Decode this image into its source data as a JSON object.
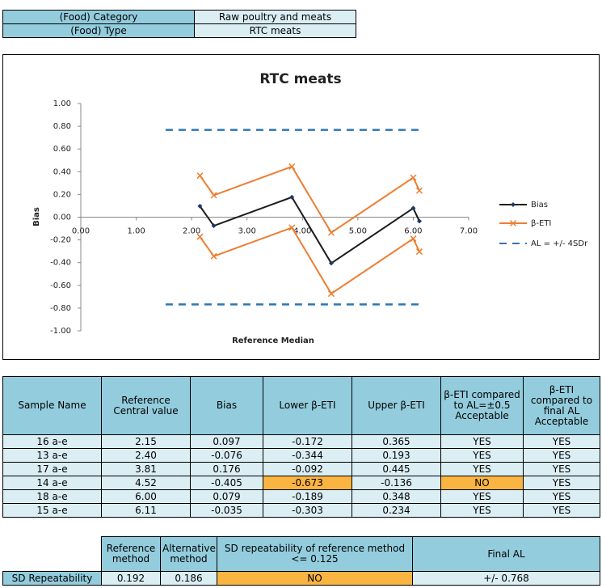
{
  "top_table": {
    "rows": [
      [
        "(Food) Category",
        "Raw poultry and meats"
      ],
      [
        "(Food) Type",
        "RTC meats"
      ]
    ]
  },
  "chart_data": {
    "type": "line",
    "title": "RTC meats",
    "x_label": "Reference Median",
    "y_label": "Bias",
    "x": [
      2.15,
      2.4,
      3.81,
      4.52,
      6.0,
      6.11
    ],
    "series": [
      {
        "name": "Bias",
        "color": "#1c1c1c",
        "marker_color": "#1f3864",
        "values": [
          0.097,
          -0.076,
          0.176,
          -0.405,
          0.079,
          -0.035
        ]
      },
      {
        "name": "β-ETI",
        "color": "#ed7d31",
        "lower": [
          -0.172,
          -0.344,
          -0.092,
          -0.673,
          -0.189,
          -0.303
        ],
        "upper": [
          0.365,
          0.193,
          0.445,
          -0.136,
          0.348,
          0.234
        ]
      },
      {
        "name": "AL = +/- 4SDr",
        "color": "#2e75b6",
        "x": [
          1.53,
          6.17
        ],
        "upper": [
          0.768,
          0.768
        ],
        "lower": [
          -0.768,
          -0.768
        ]
      }
    ],
    "xlim": [
      0,
      7
    ],
    "ylim": [
      -1,
      1
    ],
    "xticks": [
      {
        "value": 0,
        "label": "0.00"
      },
      {
        "value": 1,
        "label": "1.00"
      },
      {
        "value": 2,
        "label": "2.00"
      },
      {
        "value": 3,
        "label": "3.00"
      },
      {
        "value": 4,
        "label": "4.00"
      },
      {
        "value": 5,
        "label": "5.00"
      },
      {
        "value": 6,
        "label": "6.00"
      },
      {
        "value": 7,
        "label": "7.00"
      }
    ],
    "yticks": [
      {
        "value": 1,
        "label": "1.00"
      },
      {
        "value": 0.8,
        "label": "0.80"
      },
      {
        "value": 0.6,
        "label": "0.60"
      },
      {
        "value": 0.4,
        "label": "0.40"
      },
      {
        "value": 0.2,
        "label": "0.20"
      },
      {
        "value": 0,
        "label": "0.00"
      },
      {
        "value": -0.2,
        "label": "-0.20"
      },
      {
        "value": -0.4,
        "label": "-0.40"
      },
      {
        "value": -0.6,
        "label": "-0.60"
      },
      {
        "value": -0.8,
        "label": "-0.80"
      },
      {
        "value": -1,
        "label": "-1.00"
      }
    ],
    "legend": "right"
  },
  "results_table": {
    "header": [
      "Sample Name",
      "Reference Central value",
      "Bias",
      "Lower β-ETI",
      "Upper β-ETI",
      "β-ETI compared to AL=±0.5 Acceptable",
      "β-ETI compared to final AL Acceptable"
    ],
    "rows": [
      [
        "16 a-e",
        "2.15",
        "0.097",
        "-0.172",
        "0.365",
        "YES",
        "YES"
      ],
      [
        "13 a-e",
        "2.40",
        "-0.076",
        "-0.344",
        "0.193",
        "YES",
        "YES"
      ],
      [
        "17 a-e",
        "3.81",
        "0.176",
        "-0.092",
        "0.445",
        "YES",
        "YES"
      ],
      [
        "14 a-e",
        "4.52",
        "-0.405",
        "-0.673",
        "-0.136",
        "NO",
        "YES"
      ],
      [
        "18 a-e",
        "6.00",
        "0.079",
        "-0.189",
        "0.348",
        "YES",
        "YES"
      ],
      [
        "15 a-e",
        "6.11",
        "-0.035",
        "-0.303",
        "0.234",
        "YES",
        "YES"
      ]
    ],
    "highlight_cells": [
      [
        3,
        3
      ],
      [
        3,
        5
      ]
    ],
    "highlight_color": "#f9b442"
  },
  "repeatability_table": {
    "header": [
      "Reference method",
      "Alternative method",
      "SD repeatability of reference method <= 0.125",
      "Final AL"
    ],
    "row_label": "SD Repeatability",
    "row": [
      "0.192",
      "0.186",
      "NO",
      "+/- 0.768"
    ],
    "highlight_cells": [
      2
    ],
    "highlight_color": "#f9b442"
  }
}
